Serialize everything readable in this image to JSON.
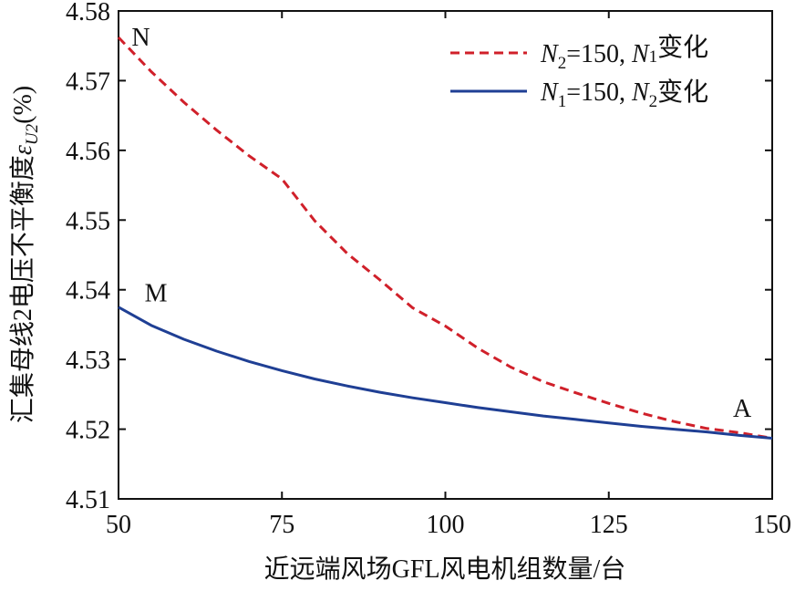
{
  "chart_data": {
    "type": "line",
    "xlabel": "近远端风场GFL风电机组数量/台",
    "ylabel": "汇集母线2电压不平衡度εU2(%)",
    "ylabel_parts": {
      "prefix": "汇集母线2电压不平衡度",
      "symbol": "ε",
      "subscript": "U2",
      "suffix": "(%)"
    },
    "xlim": [
      50,
      150
    ],
    "ylim": [
      4.51,
      4.58
    ],
    "xticks": [
      50,
      75,
      100,
      125,
      150
    ],
    "yticks": [
      4.51,
      4.52,
      4.53,
      4.54,
      4.55,
      4.56,
      4.57,
      4.58
    ],
    "xtick_labels": [
      "50",
      "75",
      "100",
      "125",
      "150"
    ],
    "ytick_labels": [
      "4.51",
      "4.52",
      "4.53",
      "4.54",
      "4.55",
      "4.56",
      "4.57",
      "4.58"
    ],
    "grid": false,
    "legend_position": "top-right",
    "series": [
      {
        "name": "N2=150, N1变化",
        "legend": {
          "v1": "N",
          "s1": "2",
          "mid": "=150, ",
          "v2": "N",
          "s2": "1",
          "tail": "变化"
        },
        "color": "#d0202a",
        "style": "dashed",
        "x": [
          50,
          55,
          60,
          65,
          70,
          75,
          80,
          85,
          90,
          95,
          100,
          105,
          110,
          115,
          120,
          125,
          130,
          135,
          140,
          145,
          150
        ],
        "y": [
          4.5762,
          4.5713,
          4.5669,
          4.5629,
          4.5592,
          4.5559,
          4.5499,
          4.5452,
          4.5414,
          4.5374,
          4.5348,
          4.5316,
          4.5289,
          4.5268,
          4.5252,
          4.5237,
          4.5223,
          4.5211,
          4.5201,
          4.5195,
          4.5187
        ]
      },
      {
        "name": "N1=150, N2变化",
        "legend": {
          "v1": "N",
          "s1": "1",
          "mid": "=150, ",
          "v2": "N",
          "s2": "2",
          "tail": "变化"
        },
        "color": "#1f3f94",
        "style": "solid",
        "x": [
          50,
          55,
          60,
          65,
          70,
          75,
          80,
          85,
          90,
          95,
          100,
          105,
          110,
          115,
          120,
          125,
          130,
          135,
          140,
          145,
          150
        ],
        "y": [
          4.5375,
          4.5349,
          4.5329,
          4.5312,
          4.5297,
          4.5284,
          4.5272,
          4.5262,
          4.5253,
          4.5245,
          4.5238,
          4.5231,
          4.5225,
          4.5219,
          4.5214,
          4.5209,
          4.5204,
          4.52,
          4.5196,
          4.5191,
          4.5187
        ]
      }
    ],
    "annotations": [
      {
        "text": "N",
        "x": 52,
        "y": 4.575
      },
      {
        "text": "M",
        "x": 54,
        "y": 4.5383
      },
      {
        "text": "A",
        "x": 144,
        "y": 4.5218
      }
    ]
  }
}
